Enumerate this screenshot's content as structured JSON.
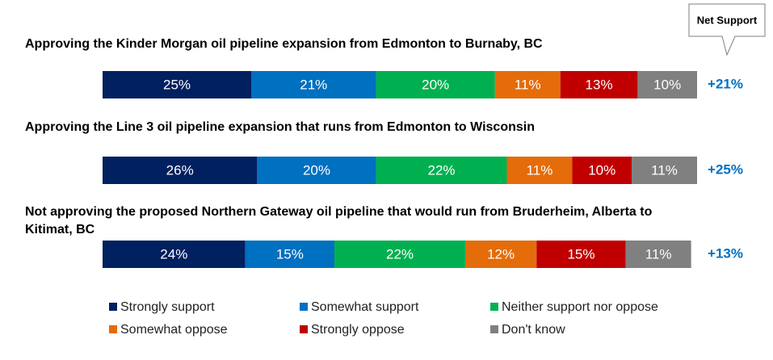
{
  "chart_data": {
    "type": "stacked-bar-horizontal",
    "categories": [
      "Approving the Kinder Morgan oil pipeline expansion from Edmonton to Burnaby, BC",
      "Approving the Line 3 oil pipeline expansion that runs from Edmonton to Wisconsin",
      "Not approving the proposed Northern Gateway oil pipeline that would run from Bruderheim, Alberta to Kitimat, BC"
    ],
    "xlim": [
      0,
      100
    ],
    "series": [
      {
        "name": "Strongly support",
        "color": "#002060",
        "values": [
          25,
          26,
          24
        ],
        "value_labels": [
          "25%",
          "26%",
          "24%"
        ]
      },
      {
        "name": "Somewhat support",
        "color": "#0070c0",
        "values": [
          21,
          20,
          15
        ],
        "value_labels": [
          "21%",
          "20%",
          "15%"
        ]
      },
      {
        "name": "Neither support nor oppose",
        "color": "#00b050",
        "values": [
          20,
          22,
          22
        ],
        "value_labels": [
          "20%",
          "22%",
          "22%"
        ]
      },
      {
        "name": "Somewhat oppose",
        "color": "#e46c0a",
        "values": [
          11,
          11,
          12
        ],
        "value_labels": [
          "11%",
          "11%",
          "12%"
        ]
      },
      {
        "name": "Strongly oppose",
        "color": "#c00000",
        "values": [
          13,
          10,
          15
        ],
        "value_labels": [
          "13%",
          "10%",
          "15%"
        ]
      },
      {
        "name": "Don't know",
        "color": "#808080",
        "values": [
          10,
          11,
          11
        ],
        "value_labels": [
          "10%",
          "11%",
          "11%"
        ]
      }
    ],
    "net_support": {
      "title": "Net Support",
      "color": "#0070c0",
      "values": [
        21,
        25,
        13
      ],
      "value_labels": [
        "+21%",
        "+25%",
        "+13%"
      ]
    }
  }
}
